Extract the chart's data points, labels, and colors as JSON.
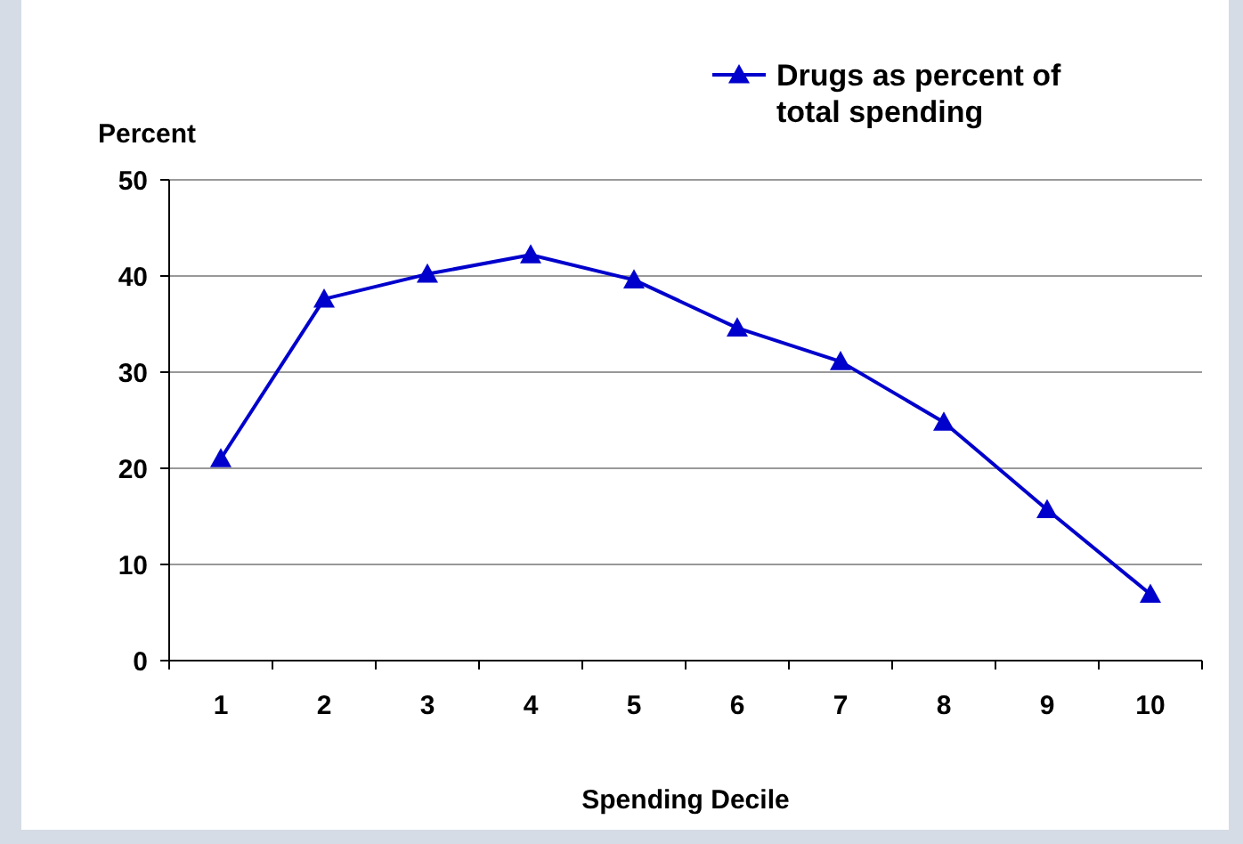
{
  "chart_data": {
    "type": "line",
    "ylabel": "Percent",
    "xlabel": "Spending Decile",
    "categories": [
      "1",
      "2",
      "3",
      "4",
      "5",
      "6",
      "7",
      "8",
      "9",
      "10"
    ],
    "series": [
      {
        "name": "Drugs as percent of total spending",
        "color": "#0000cc",
        "values": [
          21,
          37.6,
          40.2,
          42.2,
          39.6,
          34.6,
          31.1,
          24.8,
          15.7,
          6.9
        ]
      }
    ],
    "ylim": [
      0,
      50
    ],
    "yticks": [
      0,
      10,
      20,
      30,
      40,
      50
    ],
    "grid": "y",
    "legend": "top right",
    "marker": "triangle",
    "line_style": "solid"
  }
}
